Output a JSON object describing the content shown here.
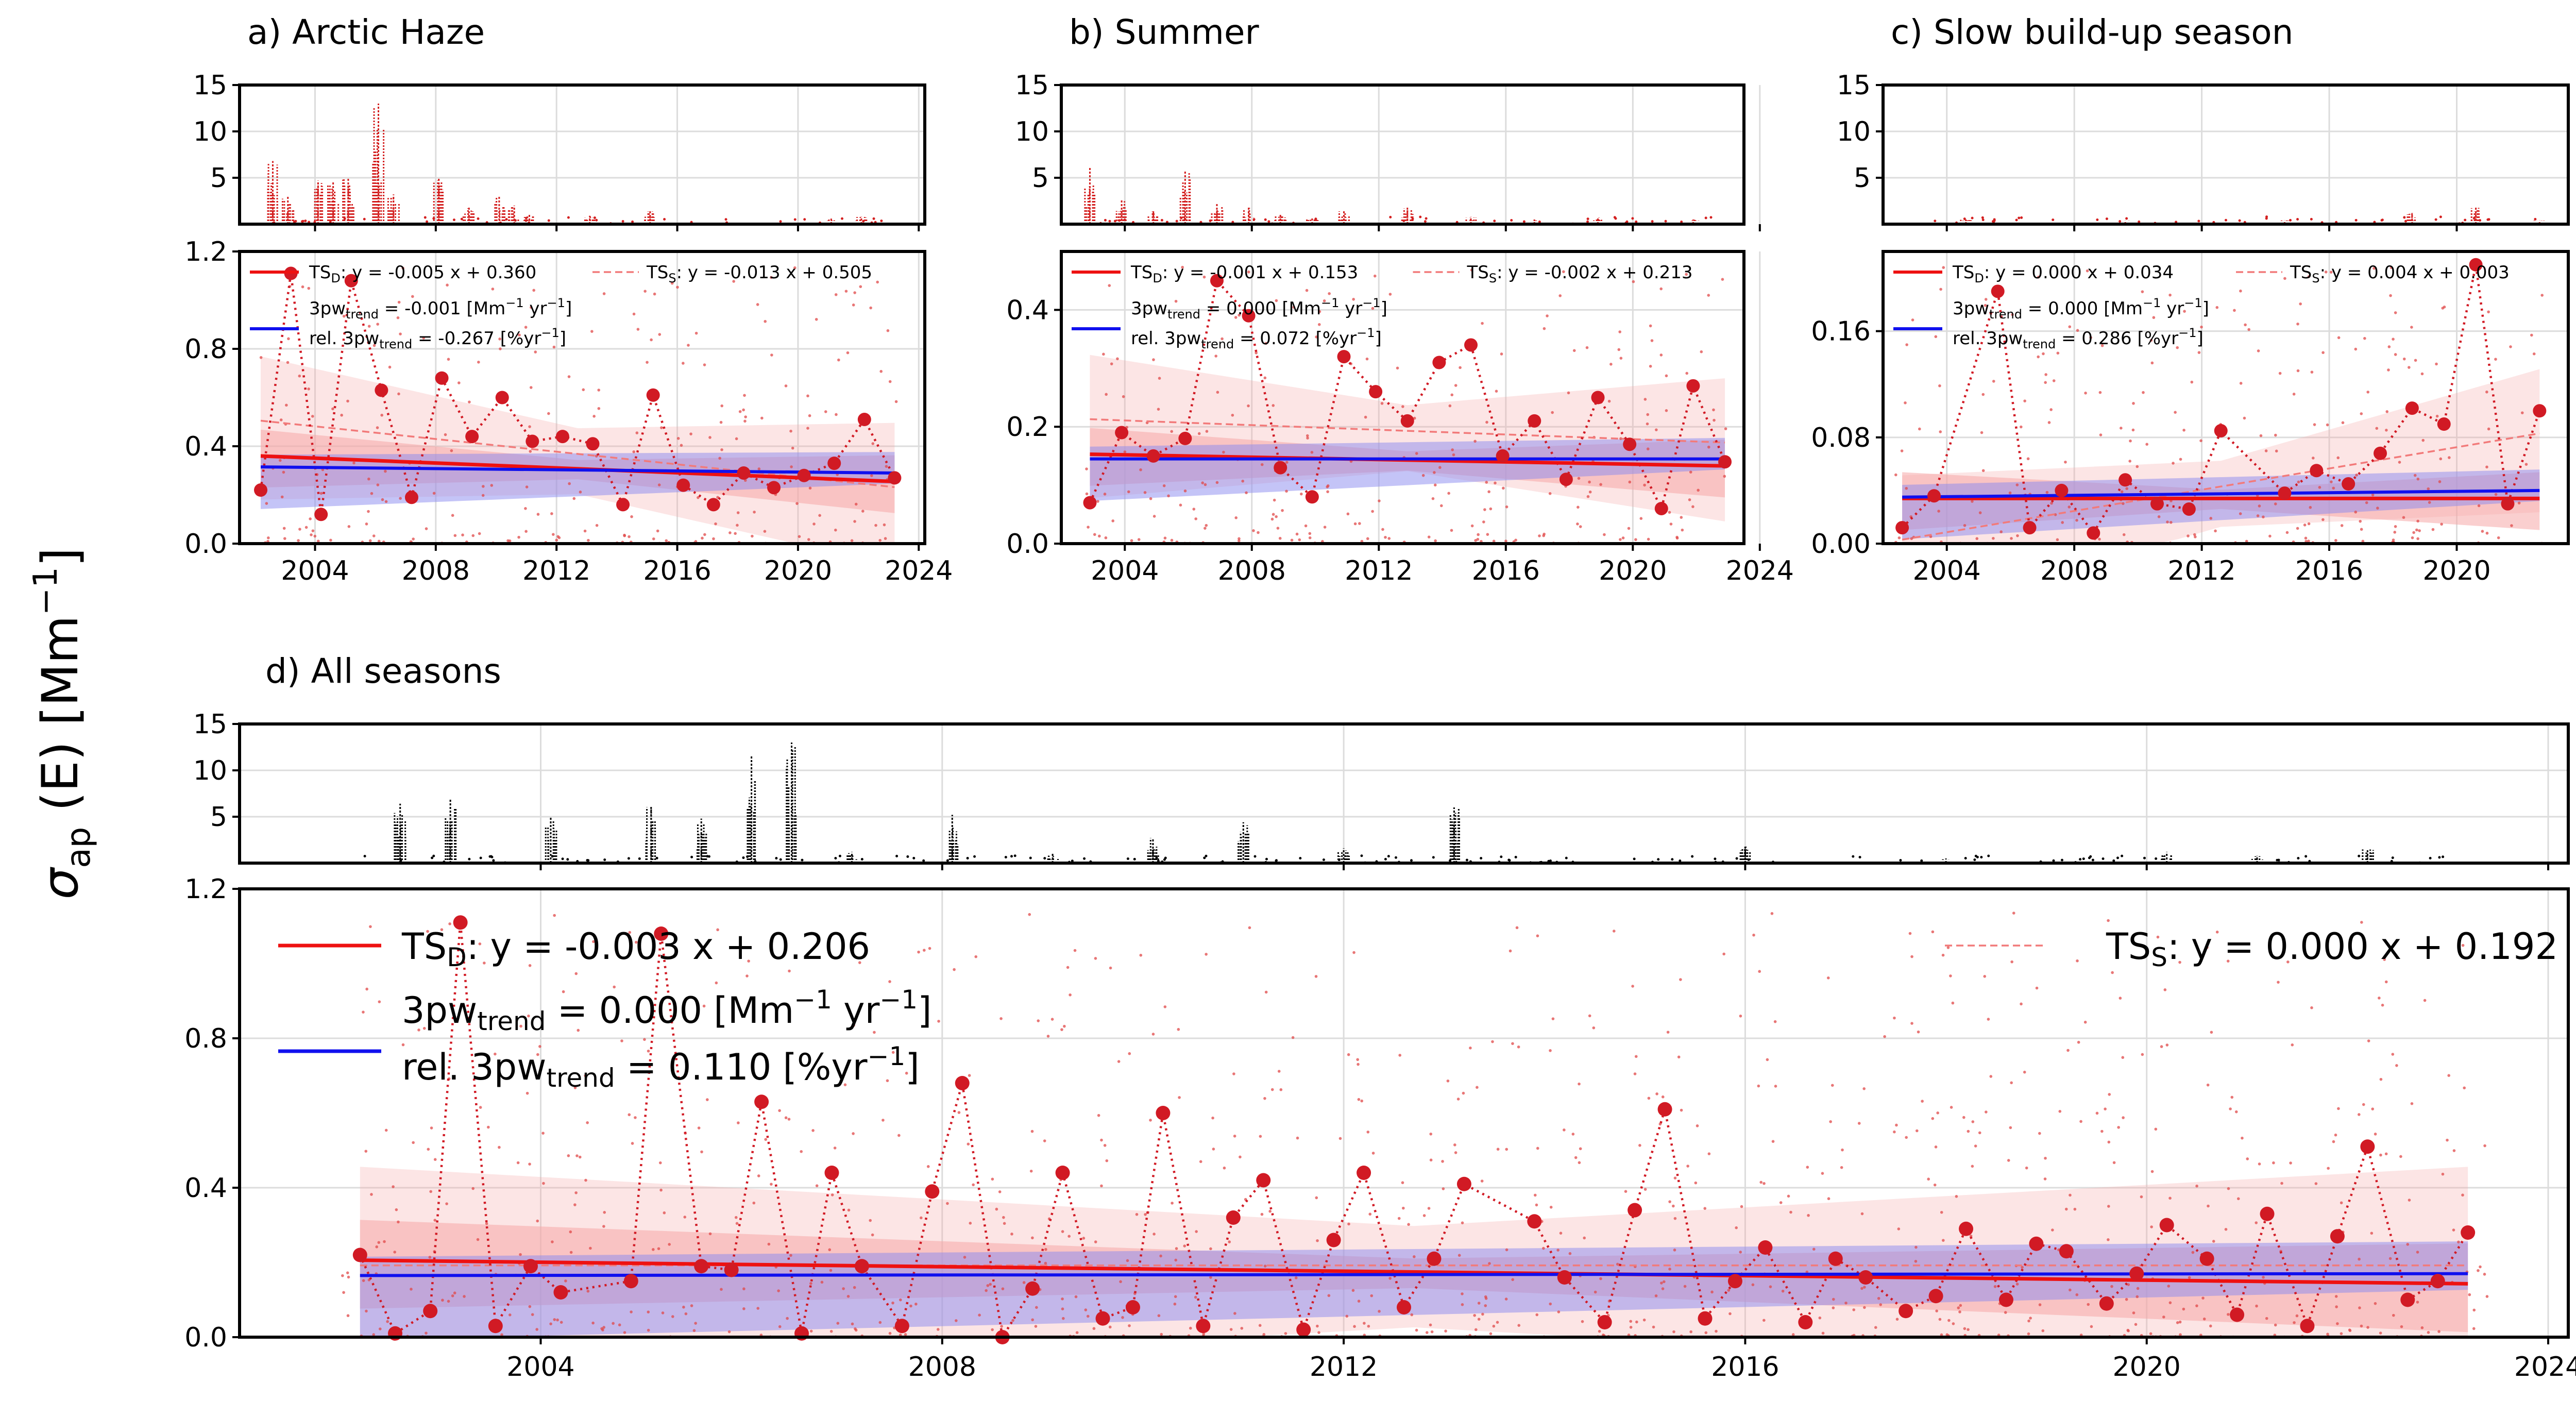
{
  "figure": {
    "ylabel_main": "σ",
    "ylabel_sub": "ap",
    "ylabel_rest": " (E) [Mm",
    "ylabel_sup": "−1",
    "ylabel_end": "]"
  },
  "colors": {
    "ts_d": "#ee1111",
    "ts_s": "#f27a7a",
    "trend_3pw": "#1010ee",
    "points": "#d11a24",
    "raw": "#e04848",
    "top_raw_seasonal": "#d42020",
    "top_raw_all": "#000000",
    "band_red": "#f6a8a8",
    "band_blue": "#8a8af0",
    "grid": "#dcdcdc"
  },
  "chart_data": [
    {
      "id": "a",
      "type": "line",
      "title": "a) Arctic Haze",
      "x_ticks": [
        2004,
        2008,
        2012,
        2016,
        2020,
        2024
      ],
      "xlim": [
        2001.5,
        2024.2
      ],
      "top": {
        "ylim": [
          0,
          15
        ],
        "yticks": [
          5,
          10,
          15
        ],
        "spikes": [
          [
            2002.6,
            6.8
          ],
          [
            2003.1,
            3.0
          ],
          [
            2004.1,
            4.7
          ],
          [
            2004.6,
            4.5
          ],
          [
            2005.1,
            4.9
          ],
          [
            2006.1,
            13.0
          ],
          [
            2006.6,
            3.2
          ],
          [
            2008.1,
            5.0
          ],
          [
            2009.1,
            1.8
          ],
          [
            2010.1,
            3.0
          ],
          [
            2010.6,
            2.0
          ],
          [
            2011.1,
            1.0
          ],
          [
            2013.1,
            0.9
          ],
          [
            2015.1,
            1.5
          ],
          [
            2021.1,
            0.6
          ],
          [
            2022.1,
            0.8
          ]
        ]
      },
      "ylim": [
        0,
        1.2
      ],
      "yticks": [
        "0.0",
        "0.4",
        "0.8",
        "1.2"
      ],
      "ytick_values": [
        0,
        0.4,
        0.8,
        1.2
      ],
      "points": [
        [
          2002.2,
          0.22
        ],
        [
          2003.2,
          1.11
        ],
        [
          2004.2,
          0.12
        ],
        [
          2005.2,
          1.08
        ],
        [
          2006.2,
          0.63
        ],
        [
          2007.2,
          0.19
        ],
        [
          2008.2,
          0.68
        ],
        [
          2009.2,
          0.44
        ],
        [
          2010.2,
          0.6
        ],
        [
          2011.2,
          0.42
        ],
        [
          2012.2,
          0.44
        ],
        [
          2013.2,
          0.41
        ],
        [
          2014.2,
          0.16
        ],
        [
          2015.2,
          0.61
        ],
        [
          2016.2,
          0.24
        ],
        [
          2017.2,
          0.16
        ],
        [
          2018.2,
          0.29
        ],
        [
          2019.2,
          0.23
        ],
        [
          2020.2,
          0.28
        ],
        [
          2021.2,
          0.33
        ],
        [
          2022.2,
          0.51
        ],
        [
          2023.2,
          0.27
        ]
      ],
      "ts_d": {
        "slope": -0.005,
        "intercept": 0.36
      },
      "ts_s": {
        "slope": -0.013,
        "intercept": 0.505
      },
      "trend_3pw": {
        "start": 0.315,
        "end": 0.29
      },
      "legend": {
        "ts_d_prefix": "TS",
        "ts_d_sub": "D",
        "ts_d_eq": ": y = -0.005 x + 0.360",
        "ts_s_prefix": "TS",
        "ts_s_sub": "S",
        "ts_s_eq": ": y = -0.013 x + 0.505",
        "pw_pre": "3pw",
        "pw_sub": "trend",
        "pw_val": " = -0.001 [Mm",
        "pw_sup": "−1",
        "pw_unit": " yr",
        "pw_sup2": "−1",
        "pw_end": "]",
        "rel_pre": "rel. 3pw",
        "rel_sub": "trend",
        "rel_val": " = -0.267 [%yr",
        "rel_sup": "−1",
        "rel_end": "]"
      }
    },
    {
      "id": "b",
      "type": "line",
      "title": "b) Summer",
      "x_ticks": [
        2004,
        2008,
        2012,
        2016,
        2020,
        2024
      ],
      "xlim": [
        2002.0,
        2023.5
      ],
      "top": {
        "ylim": [
          0,
          15
        ],
        "yticks": [
          5,
          10,
          15
        ],
        "spikes": [
          [
            2002.9,
            6.1
          ],
          [
            2003.9,
            2.7
          ],
          [
            2004.9,
            1.5
          ],
          [
            2005.9,
            5.8
          ],
          [
            2006.9,
            2.2
          ],
          [
            2007.9,
            1.8
          ],
          [
            2008.9,
            1.0
          ],
          [
            2009.9,
            0.7
          ],
          [
            2010.9,
            1.4
          ],
          [
            2012.9,
            1.8
          ],
          [
            2014.9,
            0.8
          ],
          [
            2016.9,
            0.5
          ],
          [
            2018.9,
            0.7
          ],
          [
            2021.9,
            0.5
          ]
        ]
      },
      "ylim": [
        0,
        0.5
      ],
      "yticks": [
        "0.0",
        "0.2",
        "0.4"
      ],
      "ytick_values": [
        0,
        0.2,
        0.4
      ],
      "points": [
        [
          2002.9,
          0.07
        ],
        [
          2003.9,
          0.19
        ],
        [
          2004.9,
          0.15
        ],
        [
          2005.9,
          0.18
        ],
        [
          2006.9,
          0.45
        ],
        [
          2007.9,
          0.39
        ],
        [
          2008.9,
          0.13
        ],
        [
          2009.9,
          0.08
        ],
        [
          2010.9,
          0.32
        ],
        [
          2011.9,
          0.26
        ],
        [
          2012.9,
          0.21
        ],
        [
          2013.9,
          0.31
        ],
        [
          2014.9,
          0.34
        ],
        [
          2015.9,
          0.15
        ],
        [
          2016.9,
          0.21
        ],
        [
          2017.9,
          0.11
        ],
        [
          2018.9,
          0.25
        ],
        [
          2019.9,
          0.17
        ],
        [
          2020.9,
          0.06
        ],
        [
          2021.9,
          0.27
        ],
        [
          2022.9,
          0.14
        ]
      ],
      "ts_d": {
        "slope": -0.001,
        "intercept": 0.153
      },
      "ts_s": {
        "slope": -0.002,
        "intercept": 0.213
      },
      "trend_3pw": {
        "start": 0.145,
        "end": 0.145
      },
      "legend": {
        "ts_d_prefix": "TS",
        "ts_d_sub": "D",
        "ts_d_eq": ": y = -0.001 x + 0.153",
        "ts_s_prefix": "TS",
        "ts_s_sub": "S",
        "ts_s_eq": ": y = -0.002 x + 0.213",
        "pw_pre": "3pw",
        "pw_sub": "trend",
        "pw_val": " = 0.000 [Mm",
        "pw_sup": "−1",
        "pw_unit": " yr",
        "pw_sup2": "−1",
        "pw_end": "]",
        "rel_pre": "rel. 3pw",
        "rel_sub": "trend",
        "rel_val": " = 0.072 [%yr",
        "rel_sup": "−1",
        "rel_end": "]"
      }
    },
    {
      "id": "c",
      "type": "line",
      "title": "c) Slow build-up season",
      "x_ticks": [
        2004,
        2008,
        2012,
        2016,
        2020
      ],
      "xlim": [
        2002.0,
        2023.5
      ],
      "top": {
        "ylim": [
          0,
          15
        ],
        "yticks": [
          5,
          10,
          15
        ],
        "spikes": [
          [
            2004.6,
            0.5
          ],
          [
            2009.6,
            0.4
          ],
          [
            2014.6,
            0.4
          ],
          [
            2018.6,
            1.2
          ],
          [
            2020.6,
            1.8
          ],
          [
            2022.6,
            0.4
          ]
        ]
      },
      "ylim": [
        0,
        0.22
      ],
      "yticks": [
        "0.00",
        "0.08",
        "0.16"
      ],
      "ytick_values": [
        0,
        0.08,
        0.16
      ],
      "points": [
        [
          2002.6,
          0.012
        ],
        [
          2003.6,
          0.036
        ],
        [
          2005.6,
          0.19
        ],
        [
          2006.6,
          0.012
        ],
        [
          2007.6,
          0.04
        ],
        [
          2008.6,
          0.008
        ],
        [
          2009.6,
          0.048
        ],
        [
          2010.6,
          0.03
        ],
        [
          2011.6,
          0.026
        ],
        [
          2012.6,
          0.085
        ],
        [
          2014.6,
          0.038
        ],
        [
          2015.6,
          0.055
        ],
        [
          2016.6,
          0.045
        ],
        [
          2017.6,
          0.068
        ],
        [
          2018.6,
          0.102
        ],
        [
          2019.6,
          0.09
        ],
        [
          2020.6,
          0.21
        ],
        [
          2021.6,
          0.03
        ],
        [
          2022.6,
          0.1
        ]
      ],
      "ts_d": {
        "slope": 0.0,
        "intercept": 0.034
      },
      "ts_s": {
        "slope": 0.004,
        "intercept": 0.003
      },
      "trend_3pw": {
        "start": 0.035,
        "end": 0.04
      },
      "legend": {
        "ts_d_prefix": "TS",
        "ts_d_sub": "D",
        "ts_d_eq": ": y = 0.000 x + 0.034",
        "ts_s_prefix": "TS",
        "ts_s_sub": "S",
        "ts_s_eq": ": y = 0.004 x + 0.003",
        "pw_pre": "3pw",
        "pw_sub": "trend",
        "pw_val": " = 0.000 [Mm",
        "pw_sup": "−1",
        "pw_unit": " yr",
        "pw_sup2": "−1",
        "pw_end": "]",
        "rel_pre": "rel. 3pw",
        "rel_sub": "trend",
        "rel_val": " = 0.286 [%yr",
        "rel_sup": "−1",
        "rel_end": "]"
      }
    },
    {
      "id": "d",
      "type": "line",
      "title": "d) All seasons",
      "x_ticks": [
        2004,
        2008,
        2012,
        2016,
        2020,
        2024
      ],
      "xlim": [
        2001.0,
        2024.2
      ],
      "top": {
        "ylim": [
          0,
          15
        ],
        "yticks": [
          5,
          10,
          15
        ],
        "spikes": [
          [
            2002.6,
            6.4
          ],
          [
            2003.1,
            6.9
          ],
          [
            2004.1,
            4.9
          ],
          [
            2005.1,
            6.2
          ],
          [
            2005.6,
            4.8
          ],
          [
            2006.1,
            11.5
          ],
          [
            2006.5,
            13.0
          ],
          [
            2007.1,
            1.2
          ],
          [
            2008.1,
            5.2
          ],
          [
            2009.1,
            1.0
          ],
          [
            2010.1,
            2.7
          ],
          [
            2011.0,
            4.4
          ],
          [
            2012.0,
            1.6
          ],
          [
            2013.1,
            6.0
          ],
          [
            2016.0,
            1.9
          ],
          [
            2018.0,
            0.5
          ],
          [
            2020.2,
            1.2
          ],
          [
            2021.1,
            0.8
          ],
          [
            2022.2,
            1.5
          ]
        ]
      },
      "ylim": [
        0,
        1.2
      ],
      "yticks": [
        "0.0",
        "0.4",
        "0.8",
        "1.2"
      ],
      "ytick_values": [
        0,
        0.4,
        0.8,
        1.2
      ],
      "points": [
        [
          2002.2,
          0.22
        ],
        [
          2002.55,
          0.01
        ],
        [
          2002.9,
          0.07
        ],
        [
          2003.2,
          1.11
        ],
        [
          2003.55,
          0.03
        ],
        [
          2003.9,
          0.19
        ],
        [
          2004.2,
          0.12
        ],
        [
          2004.9,
          0.15
        ],
        [
          2005.2,
          1.08
        ],
        [
          2005.6,
          0.19
        ],
        [
          2005.9,
          0.18
        ],
        [
          2006.2,
          0.63
        ],
        [
          2006.6,
          0.01
        ],
        [
          2006.9,
          0.44
        ],
        [
          2007.2,
          0.19
        ],
        [
          2007.6,
          0.03
        ],
        [
          2007.9,
          0.39
        ],
        [
          2008.2,
          0.68
        ],
        [
          2008.6,
          0.0
        ],
        [
          2008.9,
          0.13
        ],
        [
          2009.2,
          0.44
        ],
        [
          2009.6,
          0.05
        ],
        [
          2009.9,
          0.08
        ],
        [
          2010.2,
          0.6
        ],
        [
          2010.6,
          0.03
        ],
        [
          2010.9,
          0.32
        ],
        [
          2011.2,
          0.42
        ],
        [
          2011.6,
          0.02
        ],
        [
          2011.9,
          0.26
        ],
        [
          2012.2,
          0.44
        ],
        [
          2012.6,
          0.08
        ],
        [
          2012.9,
          0.21
        ],
        [
          2013.2,
          0.41
        ],
        [
          2013.9,
          0.31
        ],
        [
          2014.2,
          0.16
        ],
        [
          2014.6,
          0.04
        ],
        [
          2014.9,
          0.34
        ],
        [
          2015.2,
          0.61
        ],
        [
          2015.6,
          0.05
        ],
        [
          2015.9,
          0.15
        ],
        [
          2016.2,
          0.24
        ],
        [
          2016.6,
          0.04
        ],
        [
          2016.9,
          0.21
        ],
        [
          2017.2,
          0.16
        ],
        [
          2017.6,
          0.07
        ],
        [
          2017.9,
          0.11
        ],
        [
          2018.2,
          0.29
        ],
        [
          2018.6,
          0.1
        ],
        [
          2018.9,
          0.25
        ],
        [
          2019.2,
          0.23
        ],
        [
          2019.6,
          0.09
        ],
        [
          2019.9,
          0.17
        ],
        [
          2020.2,
          0.3
        ],
        [
          2020.6,
          0.21
        ],
        [
          2020.9,
          0.06
        ],
        [
          2021.2,
          0.33
        ],
        [
          2021.6,
          0.03
        ],
        [
          2021.9,
          0.27
        ],
        [
          2022.2,
          0.51
        ],
        [
          2022.6,
          0.1
        ],
        [
          2022.9,
          0.15
        ],
        [
          2023.2,
          0.28
        ]
      ],
      "ts_d": {
        "slope": -0.003,
        "intercept": 0.206
      },
      "ts_s": {
        "slope": 0.0,
        "intercept": 0.192
      },
      "trend_3pw": {
        "start": 0.165,
        "end": 0.17
      },
      "legend": {
        "ts_d_prefix": "TS",
        "ts_d_sub": "D",
        "ts_d_eq": ": y = -0.003 x + 0.206",
        "ts_s_prefix": "TS",
        "ts_s_sub": "S",
        "ts_s_eq": ": y = 0.000 x + 0.192",
        "pw_pre": "3pw",
        "pw_sub": "trend",
        "pw_val": " = 0.000 [Mm",
        "pw_sup": "−1",
        "pw_unit": " yr",
        "pw_sup2": "−1",
        "pw_end": "]",
        "rel_pre": "rel. 3pw",
        "rel_sub": "trend",
        "rel_val": " = 0.110 [%yr",
        "rel_sup": "−1",
        "rel_end": "]"
      }
    }
  ]
}
